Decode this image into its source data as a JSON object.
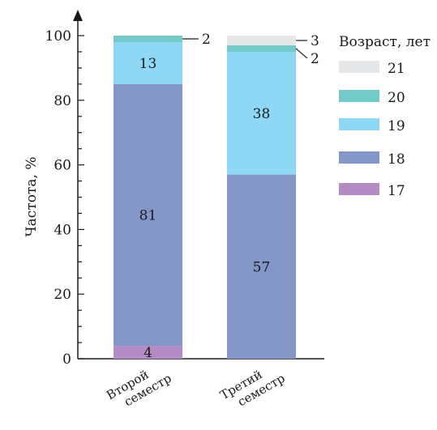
{
  "chart_data": {
    "type": "bar",
    "stacked": true,
    "title": "",
    "ylabel": "Частота, %",
    "xlabel": "",
    "ylim": [
      0,
      100
    ],
    "yticks": [
      0,
      20,
      40,
      60,
      80,
      100
    ],
    "grid": false,
    "categories": [
      {
        "line1": "Второй",
        "line2": "семестр"
      },
      {
        "line1": "Третий",
        "line2": "семестр"
      }
    ],
    "legend": {
      "title": "Возраст, лет",
      "placement": "right",
      "order": [
        "21",
        "20",
        "19",
        "18",
        "17"
      ]
    },
    "series": [
      {
        "name": "17",
        "color": "#b48cc3",
        "values": [
          4,
          0
        ]
      },
      {
        "name": "18",
        "color": "#8495c8",
        "values": [
          81,
          57
        ]
      },
      {
        "name": "19",
        "color": "#8ed8f6",
        "values": [
          13,
          38
        ]
      },
      {
        "name": "20",
        "color": "#72cbc9",
        "values": [
          2,
          2
        ]
      },
      {
        "name": "21",
        "color": "#e6e7e8",
        "values": [
          0,
          3
        ]
      }
    ],
    "labels": [
      {
        "category": 0,
        "series": "17",
        "text": "4"
      },
      {
        "category": 0,
        "series": "18",
        "text": "81"
      },
      {
        "category": 0,
        "series": "19",
        "text": "13"
      },
      {
        "category": 0,
        "series": "20",
        "text": "2",
        "callout": true
      },
      {
        "category": 1,
        "series": "18",
        "text": "57"
      },
      {
        "category": 1,
        "series": "19",
        "text": "38"
      },
      {
        "category": 1,
        "series": "20",
        "text": "2",
        "callout": true
      },
      {
        "category": 1,
        "series": "21",
        "text": "3",
        "callout": true
      }
    ],
    "colors": {
      "axis": "#1a1a1a",
      "text": "#1a1a1a"
    }
  }
}
